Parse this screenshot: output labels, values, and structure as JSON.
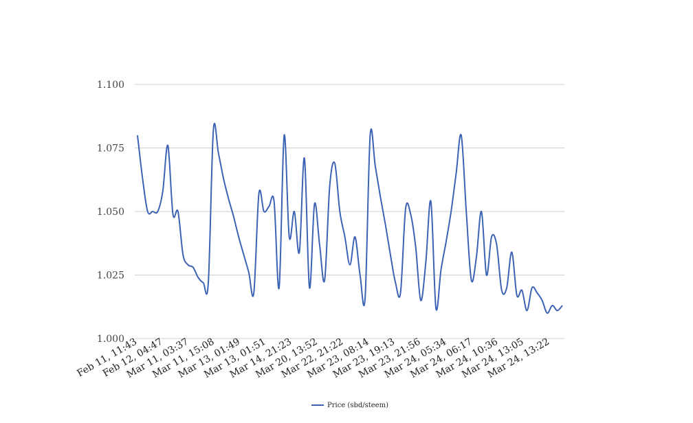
{
  "chart_data": {
    "type": "line",
    "title": "",
    "xlabel": "",
    "ylabel": "",
    "ylim": [
      1.0,
      1.1
    ],
    "yticks": [
      "1.000",
      "1.025",
      "1.050",
      "1.075",
      "1.100"
    ],
    "ytick_values": [
      1.0,
      1.025,
      1.05,
      1.075,
      1.1
    ],
    "grid": "horizontal",
    "legend_position": "bottom-center",
    "x_tick_labels": [
      "Feb 11, 11:43",
      "Feb 12, 04:47",
      "Mar 11, 03:37",
      "Mar 11, 15:08",
      "Mar 13, 01:49",
      "Mar 13, 01:51",
      "Mar 14, 21:23",
      "Mar 20, 13:52",
      "Mar 22, 21:22",
      "Mar 23, 08:14",
      "Mar 23, 19:13",
      "Mar 23, 21:56",
      "Mar 24, 05:34",
      "Mar 24, 06:17",
      "Mar 24, 10:36",
      "Mar 24, 13:05",
      "Mar 24, 13:22"
    ],
    "series": [
      {
        "name": "Price (sbd/steem)",
        "color": "#3c62b4",
        "values": [
          1.08,
          1.063,
          1.05,
          1.05,
          1.05,
          1.058,
          1.076,
          1.049,
          1.05,
          1.033,
          1.029,
          1.028,
          1.024,
          1.022,
          1.022,
          1.082,
          1.073,
          1.063,
          1.055,
          1.048,
          1.04,
          1.033,
          1.026,
          1.018,
          1.057,
          1.05,
          1.052,
          1.054,
          1.02,
          1.08,
          1.04,
          1.05,
          1.034,
          1.071,
          1.02,
          1.053,
          1.037,
          1.023,
          1.06,
          1.069,
          1.05,
          1.04,
          1.029,
          1.04,
          1.025,
          1.016,
          1.08,
          1.068,
          1.056,
          1.045,
          1.033,
          1.022,
          1.018,
          1.051,
          1.049,
          1.036,
          1.015,
          1.03,
          1.054,
          1.012,
          1.027,
          1.038,
          1.05,
          1.065,
          1.08,
          1.05,
          1.023,
          1.032,
          1.05,
          1.025,
          1.04,
          1.037,
          1.019,
          1.02,
          1.034,
          1.017,
          1.019,
          1.011,
          1.02,
          1.018,
          1.015,
          1.01,
          1.013,
          1.011,
          1.013
        ]
      }
    ]
  }
}
